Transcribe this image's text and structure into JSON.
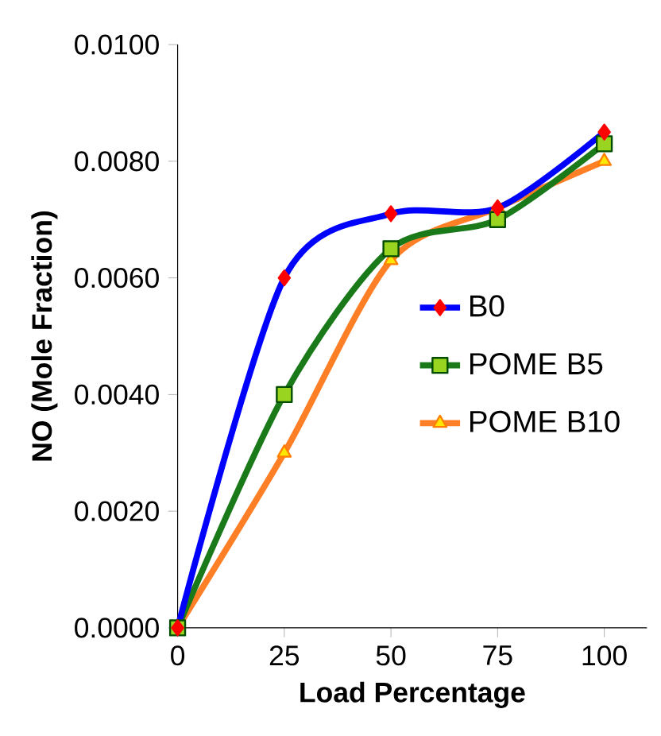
{
  "chart_data": {
    "type": "line",
    "xlabel": "Load Percentage",
    "ylabel": "NO (Mole Fraction)",
    "x": [
      0,
      25,
      50,
      75,
      100
    ],
    "series": [
      {
        "name": "B0",
        "color": "#0000ff",
        "marker": "diamond",
        "values": [
          0,
          0.006,
          0.0071,
          0.0072,
          0.0085
        ]
      },
      {
        "name": "POME B5",
        "color": "#1a7a1a",
        "marker": "square",
        "values": [
          0,
          0.004,
          0.0065,
          0.007,
          0.0083
        ]
      },
      {
        "name": "POME B10",
        "color": "#ff7f27",
        "marker": "triangle",
        "values": [
          0,
          0.003,
          0.0063,
          0.0072,
          0.008
        ]
      }
    ],
    "xlim": [
      0,
      110
    ],
    "xticks": [
      0,
      25,
      50,
      75,
      100
    ],
    "ylim": [
      0,
      0.01
    ],
    "yticks": [
      {
        "value": 0,
        "label": "0.0000"
      },
      {
        "value": 0.002,
        "label": "0.0020"
      },
      {
        "value": 0.004,
        "label": "0.0040"
      },
      {
        "value": 0.006,
        "label": "0.0060"
      },
      {
        "value": 0.008,
        "label": "0.0080"
      },
      {
        "value": 0.01,
        "label": "0.0100"
      }
    ],
    "legend": "right",
    "grid": false
  }
}
